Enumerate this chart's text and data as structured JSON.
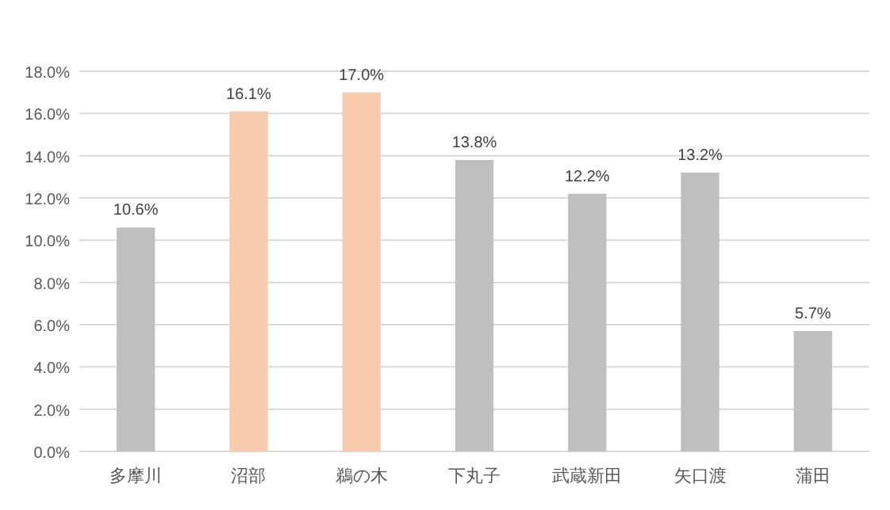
{
  "chart_data": {
    "type": "bar",
    "categories": [
      "多摩川",
      "沼部",
      "鵜の木",
      "下丸子",
      "武蔵新田",
      "矢口渡",
      "蒲田"
    ],
    "values": [
      10.6,
      16.1,
      17.0,
      13.8,
      12.2,
      13.2,
      5.7
    ],
    "colors": [
      "#bfbfbf",
      "#f8cbad",
      "#f8cbad",
      "#bfbfbf",
      "#bfbfbf",
      "#bfbfbf",
      "#bfbfbf"
    ],
    "value_labels": [
      "10.6%",
      "16.1%",
      "17.0%",
      "13.8%",
      "12.2%",
      "13.2%",
      "5.7%"
    ],
    "ylim": [
      0,
      18
    ],
    "yticks": [
      {
        "value": 0,
        "label": "0.0%"
      },
      {
        "value": 2,
        "label": "2.0%"
      },
      {
        "value": 4,
        "label": "4.0%"
      },
      {
        "value": 6,
        "label": "6.0%"
      },
      {
        "value": 8,
        "label": "8.0%"
      },
      {
        "value": 10,
        "label": "10.0%"
      },
      {
        "value": 12,
        "label": "12.0%"
      },
      {
        "value": 14,
        "label": "14.0%"
      },
      {
        "value": 16,
        "label": "16.0%"
      },
      {
        "value": 18,
        "label": "18.0%"
      }
    ],
    "grid": "y"
  }
}
